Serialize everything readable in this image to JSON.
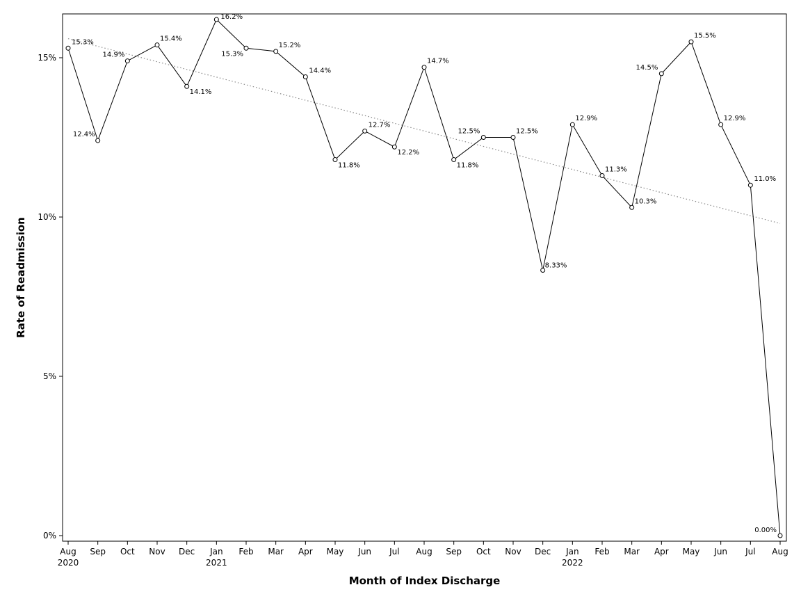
{
  "chart_data": {
    "type": "line",
    "xlabel": "Month of Index Discharge",
    "ylabel": "Rate of Readmission",
    "ylim": [
      0,
      16.5
    ],
    "yticks": [
      {
        "value": 0,
        "label": "0%"
      },
      {
        "value": 5,
        "label": "5%"
      },
      {
        "value": 10,
        "label": "10%"
      },
      {
        "value": 15,
        "label": "15%"
      }
    ],
    "grid": false,
    "legend": "none",
    "trendline": {
      "style": "dotted",
      "start": 15.6,
      "end": 9.8
    },
    "series": [
      {
        "points": [
          {
            "month": "Aug",
            "year": "2020",
            "value": 15.3,
            "label": "15.3%"
          },
          {
            "month": "Sep",
            "year": "",
            "value": 12.4,
            "label": "12.4%"
          },
          {
            "month": "Oct",
            "year": "",
            "value": 14.9,
            "label": "14.9%"
          },
          {
            "month": "Nov",
            "year": "",
            "value": 15.4,
            "label": "15.4%"
          },
          {
            "month": "Dec",
            "year": "",
            "value": 14.1,
            "label": "14.1%"
          },
          {
            "month": "Jan",
            "year": "2021",
            "value": 16.2,
            "label": "16.2%"
          },
          {
            "month": "Feb",
            "year": "",
            "value": 15.3,
            "label": "15.3%"
          },
          {
            "month": "Mar",
            "year": "",
            "value": 15.2,
            "label": "15.2%"
          },
          {
            "month": "Apr",
            "year": "",
            "value": 14.4,
            "label": "14.4%"
          },
          {
            "month": "May",
            "year": "",
            "value": 11.8,
            "label": "11.8%"
          },
          {
            "month": "Jun",
            "year": "",
            "value": 12.7,
            "label": "12.7%"
          },
          {
            "month": "Jul",
            "year": "",
            "value": 12.2,
            "label": "12.2%"
          },
          {
            "month": "Aug",
            "year": "",
            "value": 14.7,
            "label": "14.7%"
          },
          {
            "month": "Sep",
            "year": "",
            "value": 11.8,
            "label": "11.8%"
          },
          {
            "month": "Oct",
            "year": "",
            "value": 12.5,
            "label": "12.5%"
          },
          {
            "month": "Nov",
            "year": "",
            "value": 12.5,
            "label": "12.5%"
          },
          {
            "month": "Dec",
            "year": "",
            "value": 8.33,
            "label": "8.33%"
          },
          {
            "month": "Jan",
            "year": "2022",
            "value": 12.9,
            "label": "12.9%"
          },
          {
            "month": "Feb",
            "year": "",
            "value": 11.3,
            "label": "11.3%"
          },
          {
            "month": "Mar",
            "year": "",
            "value": 10.3,
            "label": "10.3%"
          },
          {
            "month": "Apr",
            "year": "",
            "value": 14.5,
            "label": "14.5%"
          },
          {
            "month": "May",
            "year": "",
            "value": 15.5,
            "label": "15.5%"
          },
          {
            "month": "Jun",
            "year": "",
            "value": 12.9,
            "label": "12.9%"
          },
          {
            "month": "Jul",
            "year": "",
            "value": 11.0,
            "label": "11.0%"
          },
          {
            "month": "Aug",
            "year": "",
            "value": 0.0,
            "label": "0.00%"
          }
        ]
      }
    ]
  }
}
